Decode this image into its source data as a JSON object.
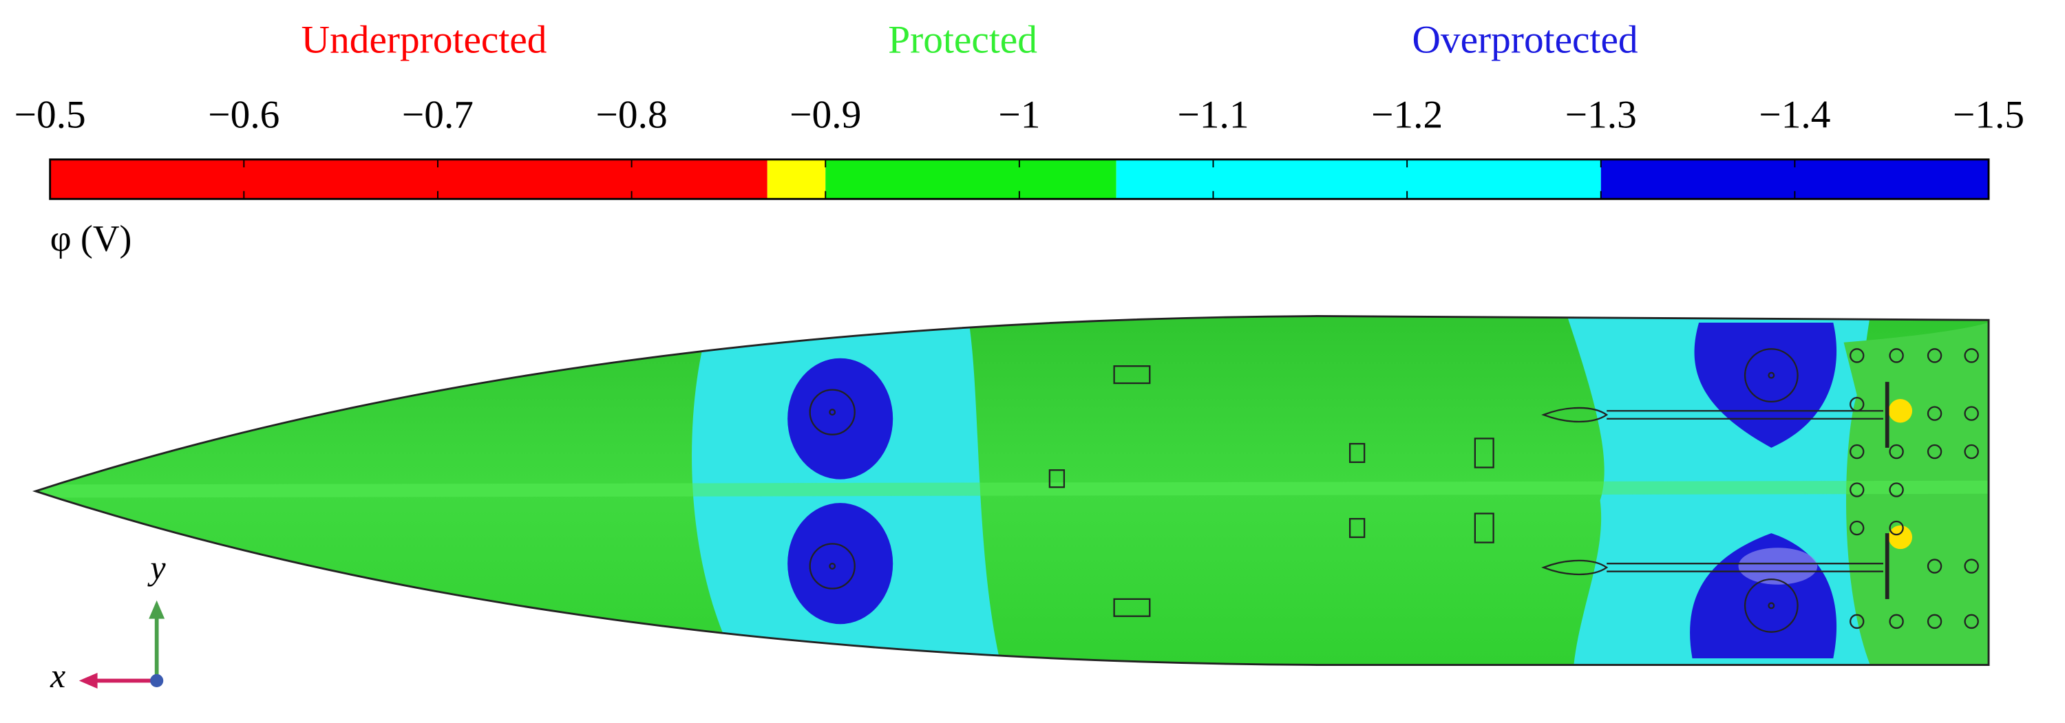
{
  "chart_data": {
    "type": "colorbar",
    "region_labels": [
      {
        "text": "Underprotected",
        "color": "#ff0000"
      },
      {
        "text": "Protected",
        "color": "#33ee33"
      },
      {
        "text": "Overprotected",
        "color": "#1a1ae0"
      }
    ],
    "xlim": [
      -0.5,
      -1.5
    ],
    "xticks": [
      {
        "value": -0.5,
        "label": "−0.5"
      },
      {
        "value": -0.6,
        "label": "−0.6"
      },
      {
        "value": -0.7,
        "label": "−0.7"
      },
      {
        "value": -0.8,
        "label": "−0.8"
      },
      {
        "value": -0.9,
        "label": "−0.9"
      },
      {
        "value": -1,
        "label": "−1"
      },
      {
        "value": -1.1,
        "label": "−1.1"
      },
      {
        "value": -1.2,
        "label": "−1.2"
      },
      {
        "value": -1.3,
        "label": "−1.3"
      },
      {
        "value": -1.4,
        "label": "−1.4"
      },
      {
        "value": -1.5,
        "label": "−1.5"
      }
    ],
    "segments": [
      {
        "from": -0.5,
        "to": -0.87,
        "color": "#ff0000"
      },
      {
        "from": -0.87,
        "to": -0.9,
        "color": "#ffff00"
      },
      {
        "from": -0.9,
        "to": -1.05,
        "color": "#11ee11"
      },
      {
        "from": -1.05,
        "to": -1.3,
        "color": "#00ffff"
      },
      {
        "from": -1.3,
        "to": -1.5,
        "color": "#0000e6"
      }
    ],
    "axis_label": "φ (V)",
    "triad": {
      "x": "x",
      "y": "y"
    }
  }
}
